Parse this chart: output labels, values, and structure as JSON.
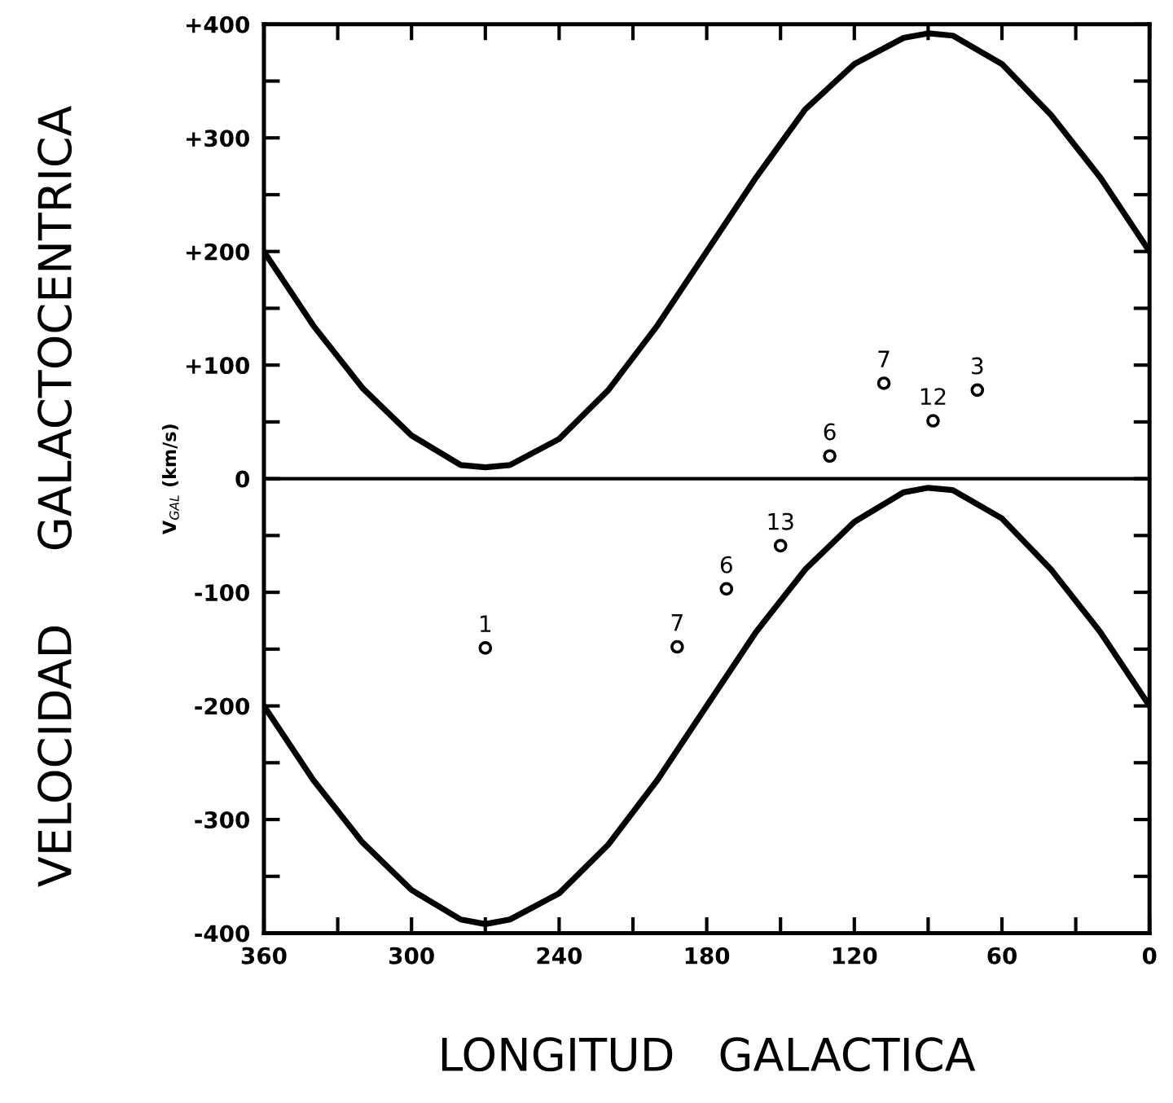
{
  "chart_data": {
    "type": "line",
    "xlabel": "LONGITUD   GALACTICA",
    "ylabel": "V$_{GAL}$ (km/s)",
    "annotations": [
      "VELOCIDAD     GALACTOCENTRICA",
      {
        "text": "6",
        "x": 130,
        "y": 20
      },
      {
        "text": "7",
        "x": 108,
        "y": 84
      },
      {
        "text": "12",
        "x": 88,
        "y": 51
      },
      {
        "text": "3",
        "x": 70,
        "y": 78
      },
      {
        "text": "1",
        "x": 270,
        "y": -149
      },
      {
        "text": "7",
        "x": 192,
        "y": -148
      },
      {
        "text": "6",
        "x": 172,
        "y": -97
      },
      {
        "text": "13",
        "x": 150,
        "y": -59
      }
    ],
    "x": [
      360,
      340,
      320,
      300,
      280,
      270,
      260,
      240,
      220,
      200,
      180,
      160,
      140,
      120,
      100,
      90,
      80,
      60,
      40,
      20,
      0
    ],
    "series": [
      {
        "color": "#000000",
        "values": [
          200,
          135,
          80,
          38,
          12,
          10,
          12,
          35,
          78,
          135,
          200,
          265,
          325,
          365,
          388,
          392,
          390,
          365,
          320,
          265,
          200
        ]
      },
      {
        "color": "#000000",
        "values": [
          -200,
          -265,
          -320,
          -362,
          -388,
          -392,
          -388,
          -365,
          -322,
          -265,
          -200,
          -135,
          -80,
          -38,
          -12,
          -8,
          -10,
          -35,
          -80,
          -135,
          -200
        ]
      },
      {
        "type": "scatter",
        "color": "#000000",
        "marker": "circle",
        "x": [
          130,
          108,
          88,
          70,
          270,
          192,
          172,
          150
        ],
        "values": [
          20,
          84,
          51,
          78,
          -149,
          -148,
          -97,
          -59
        ]
      }
    ],
    "marker": "none",
    "line_style": "solid",
    "ref_lines": [
      {
        "axis": "y",
        "value": 0,
        "color": "#000000"
      }
    ],
    "xlim": [
      360,
      0
    ],
    "ylim": [
      -400,
      400
    ],
    "xticks": [
      360,
      {
        "value": 330,
        "label": null
      },
      300,
      {
        "value": 270,
        "label": null
      },
      240,
      {
        "value": 210,
        "label": null
      },
      180,
      {
        "value": 150,
        "label": null
      },
      120,
      {
        "value": 90,
        "label": null
      },
      60,
      {
        "value": 30,
        "label": null
      },
      0
    ],
    "yticks": [
      {
        "value": -400,
        "label": "-400"
      },
      {
        "value": -350,
        "label": null
      },
      {
        "value": -300,
        "label": "-300"
      },
      {
        "value": -250,
        "label": null
      },
      {
        "value": -200,
        "label": "-200"
      },
      {
        "value": -150,
        "label": null
      },
      {
        "value": -100,
        "label": "-100"
      },
      {
        "value": -50,
        "label": null
      },
      0,
      {
        "value": 50,
        "label": null
      },
      {
        "value": 100,
        "label": "+100"
      },
      {
        "value": 150,
        "label": null
      },
      {
        "value": 200,
        "label": "+200"
      },
      {
        "value": 250,
        "label": null
      },
      {
        "value": 300,
        "label": "+300"
      },
      {
        "value": 350,
        "label": null
      },
      {
        "value": 400,
        "label": "+400"
      }
    ],
    "grid": false,
    "legend": false
  }
}
